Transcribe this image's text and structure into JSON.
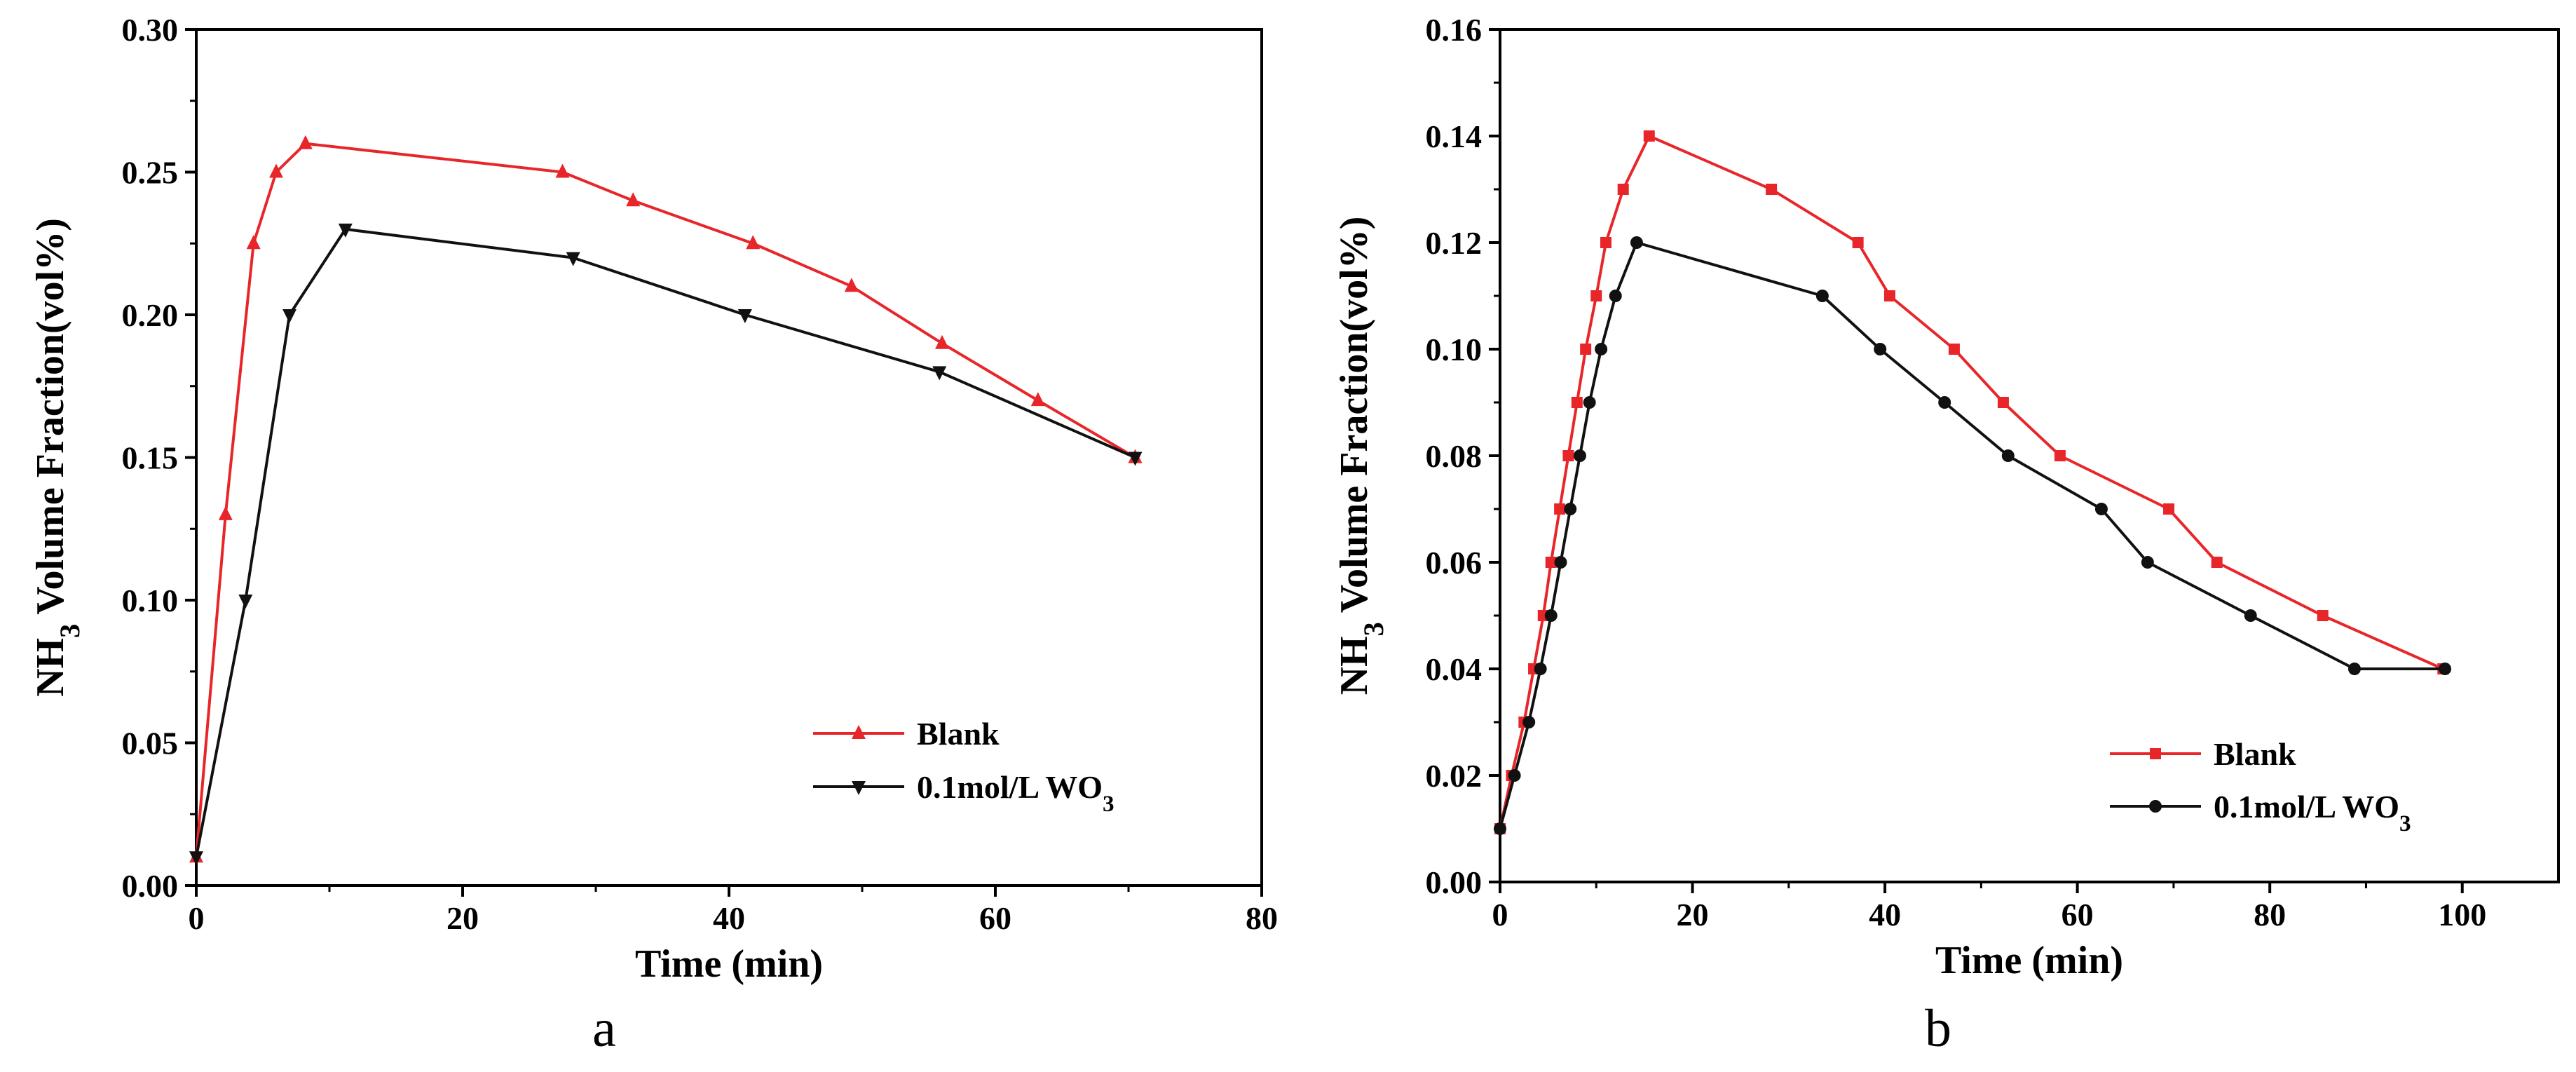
{
  "chart_data": [
    {
      "type": "line",
      "panel_label": "a",
      "xlabel": "Time (min)",
      "ylabel": {
        "main": "NH",
        "sub": "3",
        "rest": " Volume Fraction(vol%)"
      },
      "xlim": [
        0,
        80
      ],
      "ylim": [
        0,
        0.3
      ],
      "xticks": [
        "0",
        "20",
        "40",
        "60",
        "80"
      ],
      "yticks": [
        "0.00",
        "0.05",
        "0.10",
        "0.15",
        "0.20",
        "0.25",
        "0.30"
      ],
      "legend_position": "bottom-right",
      "series": [
        {
          "name": "Blank",
          "label": {
            "main": "Blank",
            "sub": ""
          },
          "color": "#e8262a",
          "marker": "triangle-up",
          "x": [
            0,
            2.2,
            4.3,
            6.0,
            8.2,
            27.5,
            32.8,
            41.8,
            49.2,
            56.0,
            63.2,
            70.5
          ],
          "y": [
            0.01,
            0.13,
            0.225,
            0.25,
            0.26,
            0.25,
            0.24,
            0.225,
            0.21,
            0.19,
            0.17,
            0.15
          ]
        },
        {
          "name": "0.1mol/L WO3",
          "label": {
            "main": "0.1mol/L WO",
            "sub": "3"
          },
          "color": "#111111",
          "marker": "triangle-down",
          "x": [
            0,
            3.7,
            7.0,
            11.2,
            28.3,
            41.2,
            55.8,
            70.5
          ],
          "y": [
            0.01,
            0.1,
            0.2,
            0.23,
            0.22,
            0.2,
            0.18,
            0.15
          ]
        }
      ]
    },
    {
      "type": "line",
      "panel_label": "b",
      "xlabel": "Time (min)",
      "ylabel": {
        "main": "NH",
        "sub": "3",
        "rest": " Volume Fraction(vol%)"
      },
      "xlim": [
        0,
        110
      ],
      "ylim": [
        0,
        0.16
      ],
      "xticks": [
        "0",
        "20",
        "40",
        "60",
        "80",
        "100"
      ],
      "yticks": [
        "0.00",
        "0.02",
        "0.04",
        "0.06",
        "0.08",
        "0.10",
        "0.12",
        "0.14",
        "0.16"
      ],
      "legend_position": "bottom-right",
      "series": [
        {
          "name": "Blank",
          "label": {
            "main": "Blank",
            "sub": ""
          },
          "color": "#e8262a",
          "marker": "square",
          "x": [
            0,
            1.2,
            2.5,
            3.5,
            4.5,
            5.3,
            6.2,
            7.1,
            8.0,
            8.9,
            10.0,
            11.0,
            12.8,
            15.5,
            28.2,
            37.2,
            40.5,
            47.2,
            52.3,
            58.2,
            69.5,
            74.5,
            85.5,
            98.0
          ],
          "y": [
            0.01,
            0.02,
            0.03,
            0.04,
            0.05,
            0.06,
            0.07,
            0.08,
            0.09,
            0.1,
            0.11,
            0.12,
            0.13,
            0.14,
            0.13,
            0.12,
            0.11,
            0.1,
            0.09,
            0.08,
            0.07,
            0.06,
            0.05,
            0.04
          ]
        },
        {
          "name": "0.1mol/L WO3",
          "label": {
            "main": "0.1mol/L WO",
            "sub": "3"
          },
          "color": "#111111",
          "marker": "circle",
          "x": [
            0,
            1.5,
            3.0,
            4.2,
            5.3,
            6.3,
            7.3,
            8.3,
            9.3,
            10.5,
            12.0,
            14.2,
            33.5,
            39.5,
            46.2,
            52.8,
            62.5,
            67.3,
            78.0,
            88.8,
            98.2
          ],
          "y": [
            0.01,
            0.02,
            0.03,
            0.04,
            0.05,
            0.06,
            0.07,
            0.08,
            0.09,
            0.1,
            0.11,
            0.12,
            0.11,
            0.1,
            0.09,
            0.08,
            0.07,
            0.06,
            0.05,
            0.04,
            0.04
          ]
        }
      ]
    }
  ]
}
